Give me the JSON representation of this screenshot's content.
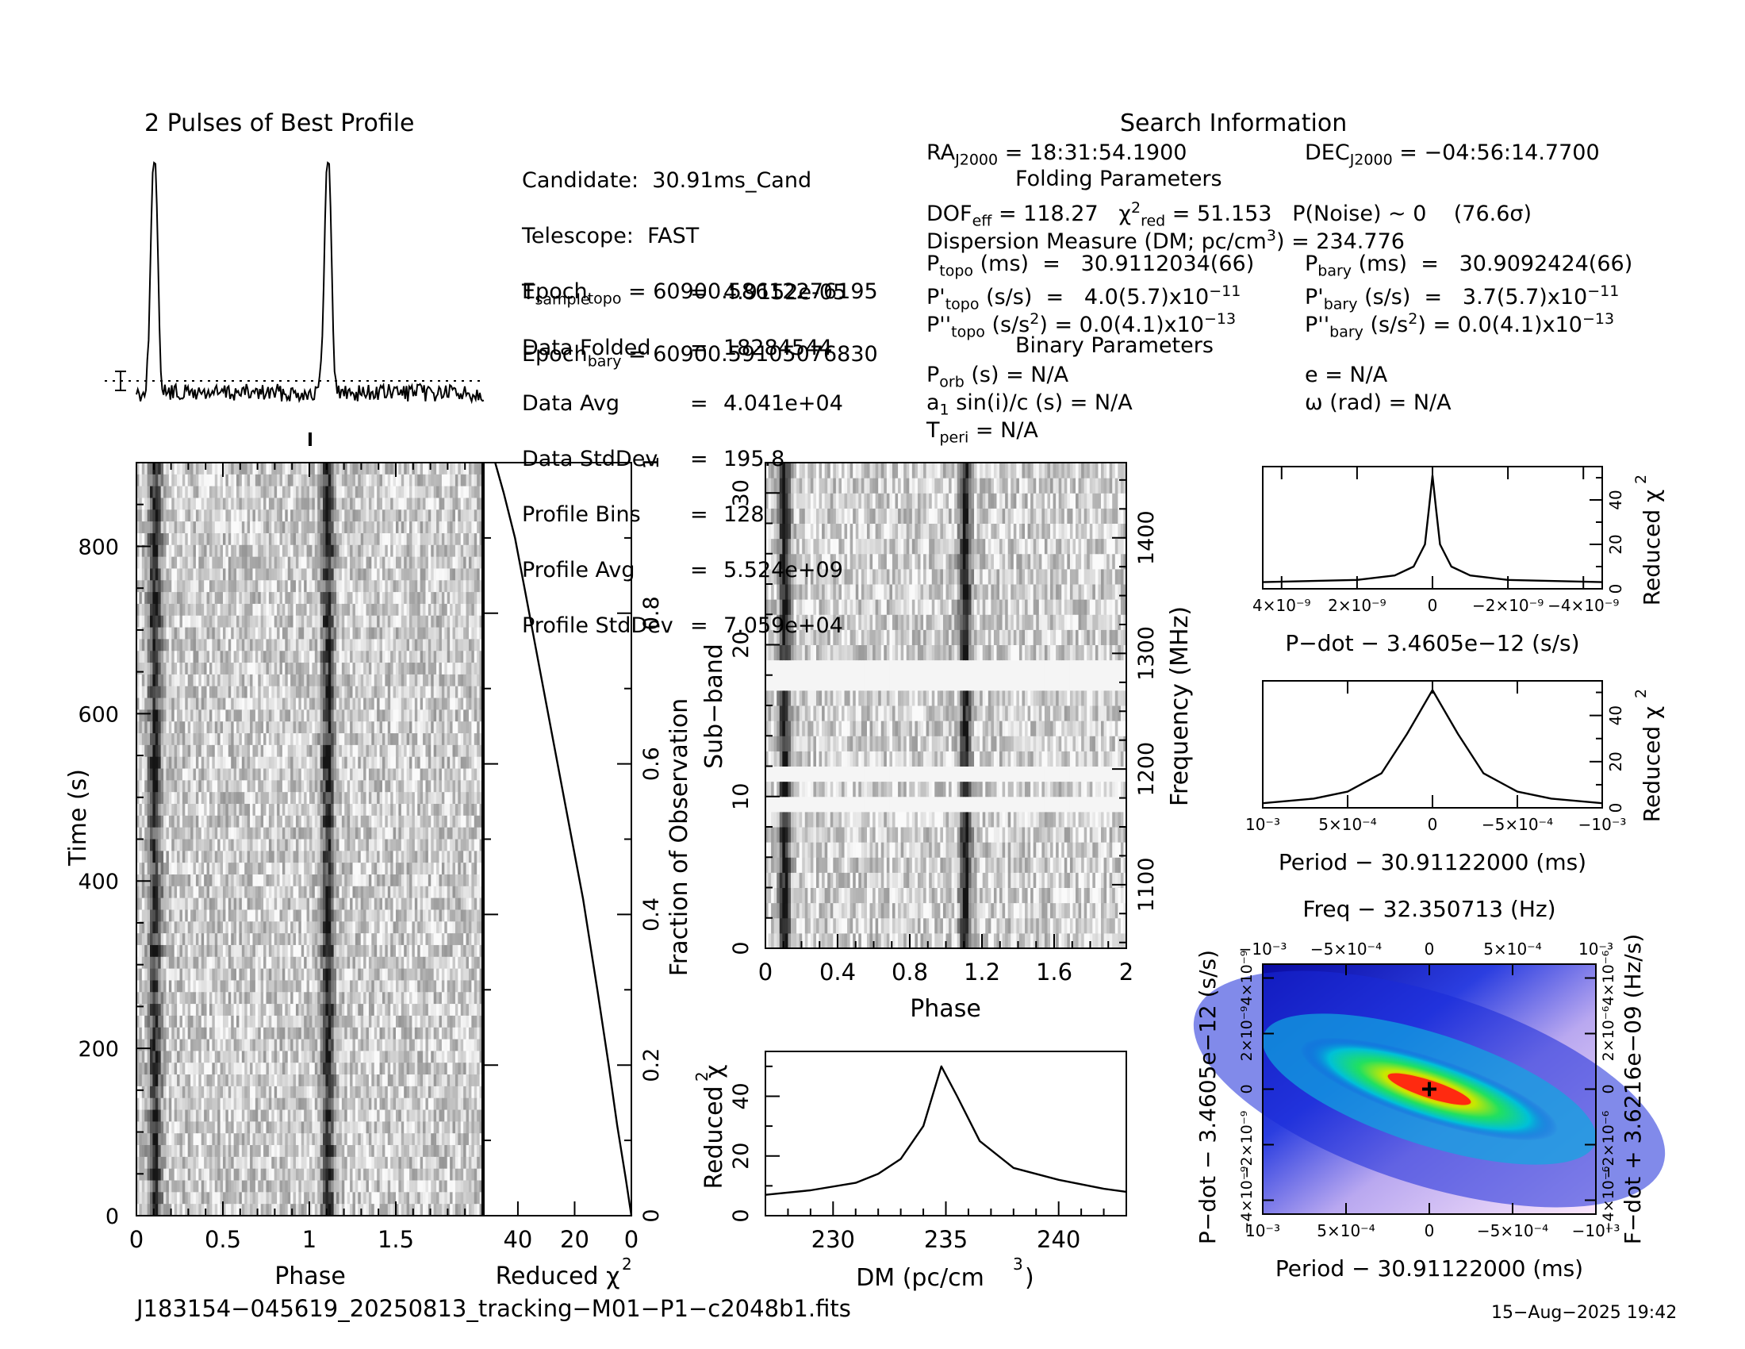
{
  "header": {
    "profile_title": "2 Pulses of Best Profile",
    "search_title": "Search Information",
    "folding_title": "Folding Parameters",
    "binary_title": "Binary Parameters"
  },
  "search_info": {
    "candidate": "Candidate:  30.91ms_Cand",
    "telescope": "Telescope:  FAST",
    "epoch_topo_label": "Epoch",
    "epoch_topo_sub": "topo",
    "epoch_topo_value": " = 60900.58612276195",
    "epoch_bary_label": "Epoch",
    "epoch_bary_sub": "bary",
    "epoch_bary_value": " = 60900.59105076830",
    "tsample_label": "T",
    "tsample_sub": "sample",
    "tsample_value": "4.9152e-05",
    "data_folded_label": "Data Folded",
    "data_folded_value": "18284544",
    "data_avg_label": "Data Avg",
    "data_avg_value": "4.041e+04",
    "data_stddev_label": "Data StdDev",
    "data_stddev_value": "195.8",
    "profile_bins_label": "Profile Bins",
    "profile_bins_value": "128",
    "profile_avg_label": "Profile Avg",
    "profile_avg_value": "5.524e+09",
    "profile_stddev_label": "Profile StdDev",
    "profile_stddev_value": "7.059e+04",
    "ra_label": "RA",
    "ra_sub": "J2000",
    "ra_value": " = 18:31:54.1900",
    "dec_label": "DEC",
    "dec_sub": "J2000",
    "dec_value": " = −04:56:14.7700"
  },
  "folding": {
    "dof_text": " = 118.27   χ",
    "chi_sup": "2",
    "chi_sub": "red",
    "chi_value": " = 51.153   P(Noise) ~ 0    (76.6σ)",
    "dm_text": "Dispersion Measure (DM; pc/cm",
    "dm_sup": "3",
    "dm_value": ") = 234.776",
    "ptopo_value": " (ms)  =   30.9112034(66)",
    "pbary_value": " (ms)  =   30.9092424(66)",
    "pdtopo_value": " (s/s)  =   4.0(5.7)x10",
    "pdtopo_exp": "−11",
    "pdbary_value": " (s/s)  =   3.7(5.7)x10",
    "pdbary_exp": "−11",
    "pddtopo_value": " (s/s",
    "pddtopo_mid": ") = 0.0(4.1)x10",
    "pddtopo_exp": "−13",
    "pddbary_value": " (s/s",
    "pddbary_mid": ") = 0.0(4.1)x10",
    "pddbary_exp": "−13"
  },
  "binary": {
    "porb": " (s) = N/A",
    "e": "e = N/A",
    "asini": " sin(i)/c (s) = N/A",
    "omega": "ω (rad) = N/A",
    "tperi": " = N/A"
  },
  "axes": {
    "time_label": "Time (s)",
    "phase_label": "Phase",
    "redchi_label": "Reduced χ",
    "redchi_sup": "2",
    "fraction_label": "Fraction of Observation",
    "subband_label": "Sub−band",
    "freq_label": "Frequency (MHz)",
    "dm_label": "DM (pc/cm",
    "dm_sup": "3",
    "pdot_label": "P−dot − 3.4605e−12 (s/s)",
    "period_label": "Period − 30.91122000 (ms)",
    "freq_top_label": "Freq − 32.350713 (Hz)",
    "pdot_left_label": "P−dot − 3.4605e−12 (s/s)",
    "fdot_label": "F−dot + 3.6216e−09 (Hz/s)"
  },
  "footer": {
    "filename": "J183154−045619_20250813_tracking−M01−P1−c2048b1.fits",
    "date": "15−Aug−2025 19:42"
  },
  "chart_data": [
    {
      "type": "line",
      "title": "2 Pulses of Best Profile",
      "xlabel": "",
      "ylabel": "",
      "x_range": [
        0,
        2
      ],
      "peaks_phase": [
        0.1,
        1.1
      ],
      "note_values": {
        "pulse_phase_center": 0.1
      }
    },
    {
      "type": "heatmap",
      "xlabel": "Phase",
      "ylabel": "Time (s)",
      "xlim": [
        0,
        2
      ],
      "ylim": [
        0,
        900
      ],
      "x_ticks": [
        "0",
        "0.5",
        "1",
        "1.5"
      ],
      "y_ticks": [
        "0",
        "200",
        "400",
        "600",
        "800"
      ],
      "rows": 64
    },
    {
      "type": "line",
      "xlabel": "Reduced χ²",
      "ylabel": "Fraction of Observation",
      "xlim": [
        50,
        0
      ],
      "ylim": [
        0,
        1
      ],
      "x_ticks": [
        "40",
        "20",
        "0"
      ],
      "y_ticks": [
        "0",
        "0.2",
        "0.4",
        "0.6",
        "0.8",
        "1"
      ],
      "points": [
        [
          0,
          0
        ],
        [
          2,
          0.05
        ],
        [
          5,
          0.12
        ],
        [
          8,
          0.2
        ],
        [
          12,
          0.3
        ],
        [
          17,
          0.42
        ],
        [
          22,
          0.52
        ],
        [
          27,
          0.62
        ],
        [
          32,
          0.72
        ],
        [
          37,
          0.82
        ],
        [
          41,
          0.9
        ],
        [
          45,
          0.96
        ],
        [
          48,
          1.0
        ]
      ]
    },
    {
      "type": "heatmap",
      "xlabel": "Phase",
      "ylabel": "Sub−band",
      "y2label": "Frequency (MHz)",
      "xlim": [
        0,
        2
      ],
      "ylim": [
        0,
        32
      ],
      "x_ticks": [
        "0",
        "0.4",
        "0.8",
        "1.2",
        "1.6",
        "2"
      ],
      "y_ticks": [
        "0",
        "10",
        "20",
        "30"
      ],
      "y2_ticks": [
        "1100",
        "1200",
        "1300",
        "1400"
      ],
      "masked_subbands": [
        9,
        11,
        17,
        18
      ]
    },
    {
      "type": "line",
      "xlabel": "DM (pc/cm³)",
      "ylabel": "Reduced χ²",
      "xlim": [
        227,
        243
      ],
      "ylim": [
        0,
        55
      ],
      "x_ticks": [
        "230",
        "235",
        "240"
      ],
      "y_ticks": [
        "0",
        "20",
        "40"
      ],
      "points": [
        [
          227,
          7
        ],
        [
          229,
          8.5
        ],
        [
          231,
          11
        ],
        [
          232,
          14
        ],
        [
          233,
          19
        ],
        [
          234,
          30
        ],
        [
          234.8,
          50
        ],
        [
          235.5,
          40
        ],
        [
          236.5,
          25
        ],
        [
          238,
          16
        ],
        [
          240,
          12
        ],
        [
          242,
          9
        ],
        [
          243,
          8
        ]
      ]
    },
    {
      "type": "line",
      "xlabel": "P−dot − 3.4605e−12 (s/s)",
      "ylabel": "Reduced χ²",
      "xlim": [
        4.5e-09,
        -4.5e-09
      ],
      "ylim": [
        0,
        55
      ],
      "x_ticks": [
        "4×10⁻⁹",
        "2×10⁻⁹",
        "0",
        "−2×10⁻⁹",
        "−4×10⁻⁹"
      ],
      "y_ticks": [
        "0",
        "20",
        "40"
      ],
      "points": [
        [
          4.5e-09,
          3
        ],
        [
          2e-09,
          4
        ],
        [
          1e-09,
          6
        ],
        [
          5e-10,
          10
        ],
        [
          2e-10,
          20
        ],
        [
          1e-10,
          35
        ],
        [
          0,
          51
        ],
        [
          -1e-10,
          35
        ],
        [
          -2e-10,
          20
        ],
        [
          -5e-10,
          10
        ],
        [
          -1e-09,
          6
        ],
        [
          -2e-09,
          4
        ],
        [
          -4.5e-09,
          3
        ]
      ]
    },
    {
      "type": "line",
      "xlabel": "Period − 30.91122000 (ms)",
      "ylabel": "Reduced χ²",
      "xlim": [
        0.001,
        -0.001
      ],
      "ylim": [
        0,
        55
      ],
      "x_ticks": [
        "10⁻³",
        "5×10⁻⁴",
        "0",
        "−5×10⁻⁴",
        "−10⁻³"
      ],
      "y_ticks": [
        "0",
        "20",
        "40"
      ],
      "points": [
        [
          0.001,
          2
        ],
        [
          0.0007,
          4
        ],
        [
          0.0005,
          7
        ],
        [
          0.0003,
          15
        ],
        [
          0.00015,
          32
        ],
        [
          0,
          51
        ],
        [
          -0.00015,
          32
        ],
        [
          -0.0003,
          15
        ],
        [
          -0.0005,
          7
        ],
        [
          -0.0007,
          4
        ],
        [
          -0.001,
          2
        ]
      ]
    },
    {
      "type": "heatmap",
      "title": "Freq − 32.350713 (Hz)",
      "xlabel": "Period − 30.91122000 (ms)",
      "ylabel": "P−dot − 3.4605e−12 (s/s)",
      "y2label": "F−dot + 3.6216e−09 (Hz/s)",
      "xlim": [
        0.001,
        -0.001
      ],
      "ylim": [
        -4.5e-09,
        4.5e-09
      ],
      "x_ticks": [
        "10⁻³",
        "5×10⁻⁴",
        "0",
        "−5×10⁻⁴",
        "−10⁻³"
      ],
      "top_ticks": [
        "−10⁻³",
        "−5×10⁻⁴",
        "0",
        "5×10⁻⁴",
        "10⁻³"
      ],
      "y_ticks": [
        "4×10⁻⁹",
        "2×10⁻⁹",
        "0",
        "−2×10⁻⁹",
        "−4×10⁻⁹"
      ],
      "y2_ticks": [
        "−4×10⁻⁶",
        "−2×10⁻⁶",
        "0",
        "2×10⁻⁶",
        "4×10⁻⁶"
      ],
      "best": [
        0,
        0
      ]
    }
  ]
}
